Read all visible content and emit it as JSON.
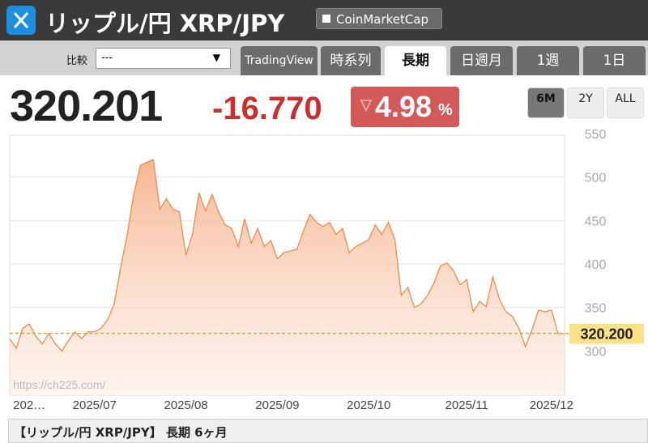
{
  "header": {
    "title": "リップル/円 XRP/JPY",
    "link": "CoinMarketCap"
  },
  "toolbar": {
    "compare_label": "比較",
    "compare_value": "---",
    "tabs": [
      "TradingView",
      "時系列",
      "長期",
      "日週月",
      "1週",
      "1日"
    ],
    "active_tab": 2
  },
  "quote": {
    "price": "320.201",
    "change": "-16.770",
    "change_pct": "4.98",
    "pct_unit": "%"
  },
  "ranges": {
    "options": [
      "6M",
      "2Y",
      "ALL"
    ],
    "active": 0
  },
  "chart_data": {
    "type": "area",
    "color": "#f08a4b",
    "categories": [
      null,
      null,
      null,
      "202…",
      null,
      null,
      null,
      null,
      null,
      null,
      null,
      null,
      null,
      "2025/07",
      null,
      null,
      null,
      null,
      null,
      null,
      null,
      null,
      null,
      null,
      null,
      null,
      null,
      "2025/08",
      null,
      null,
      null,
      null,
      null,
      null,
      null,
      null,
      null,
      null,
      null,
      null,
      null,
      "2025/09",
      null,
      null,
      null,
      null,
      null,
      null,
      null,
      null,
      null,
      null,
      null,
      null,
      null,
      "2025/10",
      null,
      null,
      null,
      null,
      null,
      null,
      null,
      null,
      null,
      null,
      null,
      null,
      null,
      null,
      "2025/11",
      null,
      null,
      null,
      null,
      null,
      null,
      null,
      null,
      null,
      null,
      null,
      null,
      "2025/12",
      null,
      null
    ],
    "values": [
      314,
      303,
      326,
      331,
      317,
      308,
      320,
      308,
      300,
      312,
      322,
      314,
      322,
      322,
      326,
      336,
      354,
      396,
      434,
      480,
      513,
      517,
      520,
      463,
      475,
      463,
      460,
      410,
      434,
      482,
      461,
      480,
      460,
      445,
      441,
      420,
      452,
      424,
      441,
      420,
      427,
      406,
      413,
      415,
      417,
      438,
      457,
      448,
      443,
      448,
      434,
      441,
      413,
      420,
      424,
      428,
      445,
      434,
      448,
      428,
      364,
      373,
      350,
      354,
      364,
      378,
      398,
      401,
      392,
      376,
      382,
      345,
      357,
      351,
      385,
      360,
      345,
      340,
      326,
      305,
      324,
      347,
      345,
      347,
      320,
      320
    ],
    "ylim": [
      250,
      550
    ],
    "yticks": [
      300,
      350,
      400,
      450,
      500,
      550
    ],
    "grid": true,
    "last_price": {
      "value": 320.2,
      "label": "320.200"
    },
    "watermark": "https://ch225.com/"
  },
  "footer": {
    "caption": "【リップル/円 XRP/JPY】 長期 6ヶ月"
  }
}
